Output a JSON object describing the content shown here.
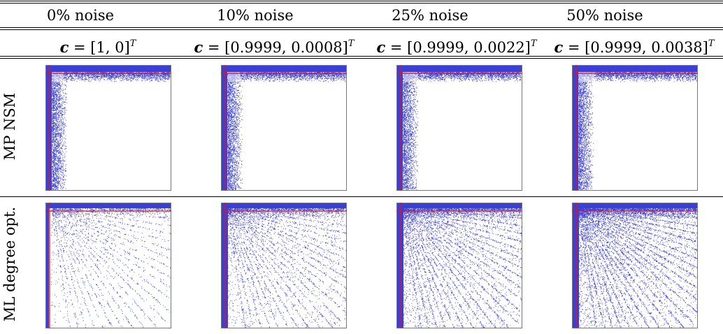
{
  "columns": [
    {
      "header": "0% noise",
      "coef_prefix": "c",
      "coef_value": " = [1, 0]",
      "coef_sup": "T"
    },
    {
      "header": "10% noise",
      "coef_prefix": "c",
      "coef_value": " = [0.9999, 0.0008]",
      "coef_sup": "T"
    },
    {
      "header": "25% noise",
      "coef_prefix": "c",
      "coef_value": " = [0.9999, 0.0022]",
      "coef_sup": "T"
    },
    {
      "header": "50% noise",
      "coef_prefix": "c",
      "coef_value": " = [0.9999, 0.0038]",
      "coef_sup": "T"
    }
  ],
  "rows": [
    {
      "label": "MP NSM"
    },
    {
      "label": "ML degree opt."
    }
  ],
  "colors": {
    "points": "#3a3fd6",
    "guide_lines": "#e0141e",
    "frame": "#777777"
  }
}
